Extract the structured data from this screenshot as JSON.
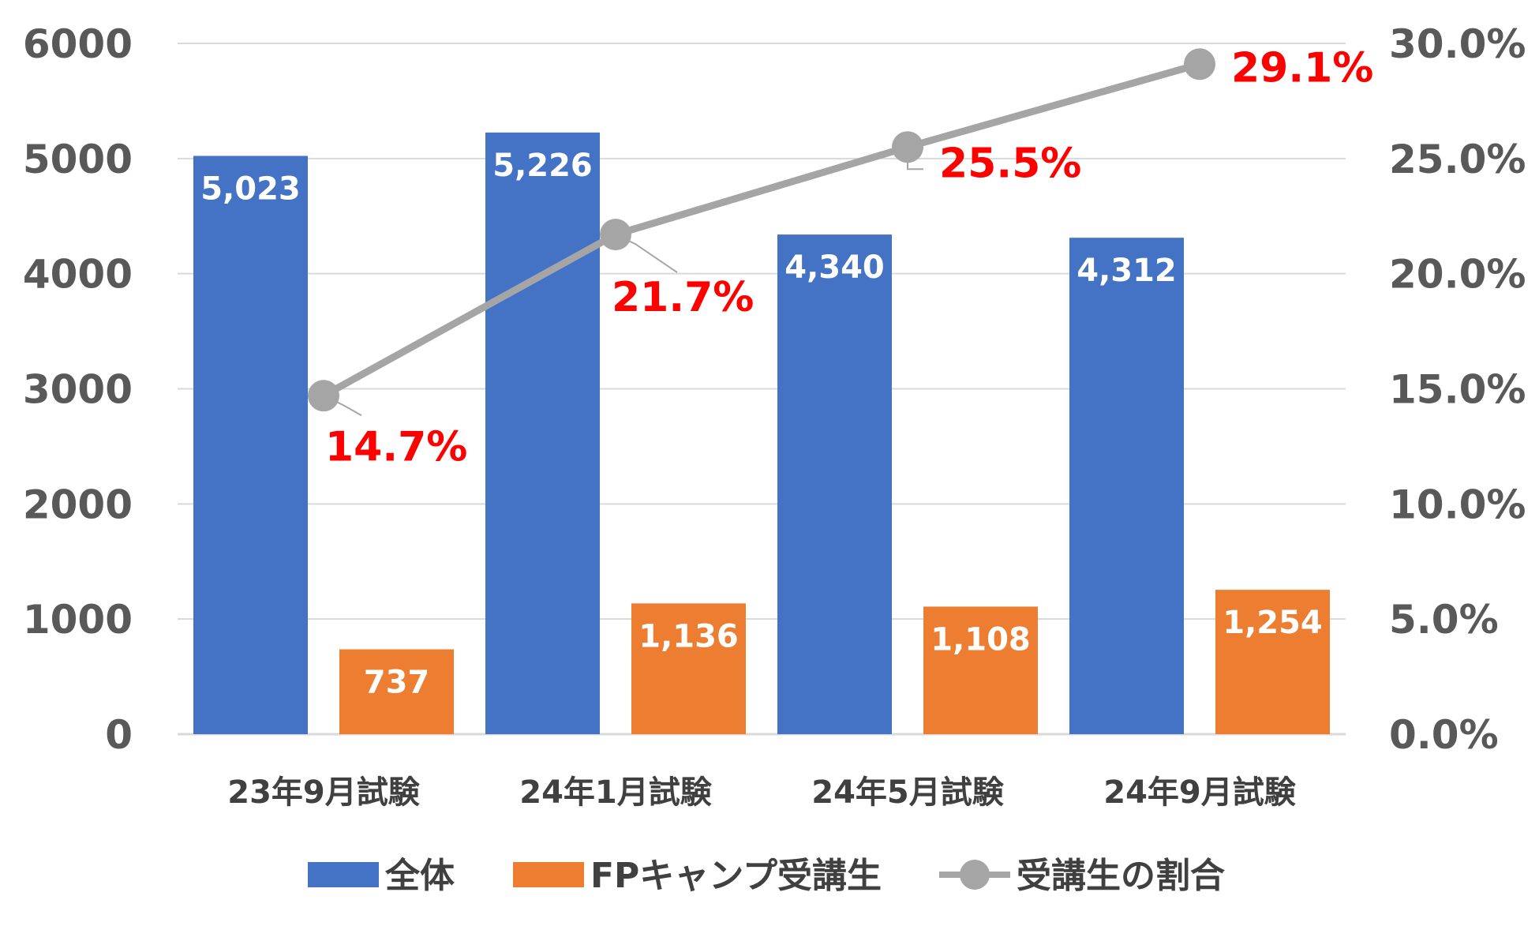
{
  "chart_data": {
    "type": "bar",
    "categories": [
      "23年9月試験",
      "24年1月試験",
      "24年5月試験",
      "24年9月試験"
    ],
    "series": [
      {
        "name": "全体",
        "type": "bar",
        "axis": "left",
        "color": "#4472C4",
        "values": [
          5023,
          5226,
          4340,
          4312
        ],
        "labels": [
          "5,023",
          "5,226",
          "4,340",
          "4,312"
        ]
      },
      {
        "name": "FPキャンプ受講生",
        "type": "bar",
        "axis": "left",
        "color": "#ED7D31",
        "values": [
          737,
          1136,
          1108,
          1254
        ],
        "labels": [
          "737",
          "1,136",
          "1,108",
          "1,254"
        ]
      },
      {
        "name": "受講生の割合",
        "type": "line",
        "axis": "right",
        "color": "#A5A5A5",
        "label_color": "#FF0000",
        "values": [
          14.7,
          21.7,
          25.5,
          29.1
        ],
        "labels": [
          "14.7%",
          "21.7%",
          "25.5%",
          "29.1%"
        ]
      }
    ],
    "left_axis": {
      "ylim": [
        0,
        6000
      ],
      "ticks": [
        "0",
        "1000",
        "2000",
        "3000",
        "4000",
        "5000",
        "6000"
      ]
    },
    "right_axis": {
      "ylim": [
        0,
        30
      ],
      "ticks": [
        "0.0%",
        "5.0%",
        "10.0%",
        "15.0%",
        "20.0%",
        "25.0%",
        "30.0%"
      ]
    },
    "grid": true,
    "legend_position": "bottom",
    "gridline_color": "#D9D9D9",
    "text_color": "#595959"
  }
}
